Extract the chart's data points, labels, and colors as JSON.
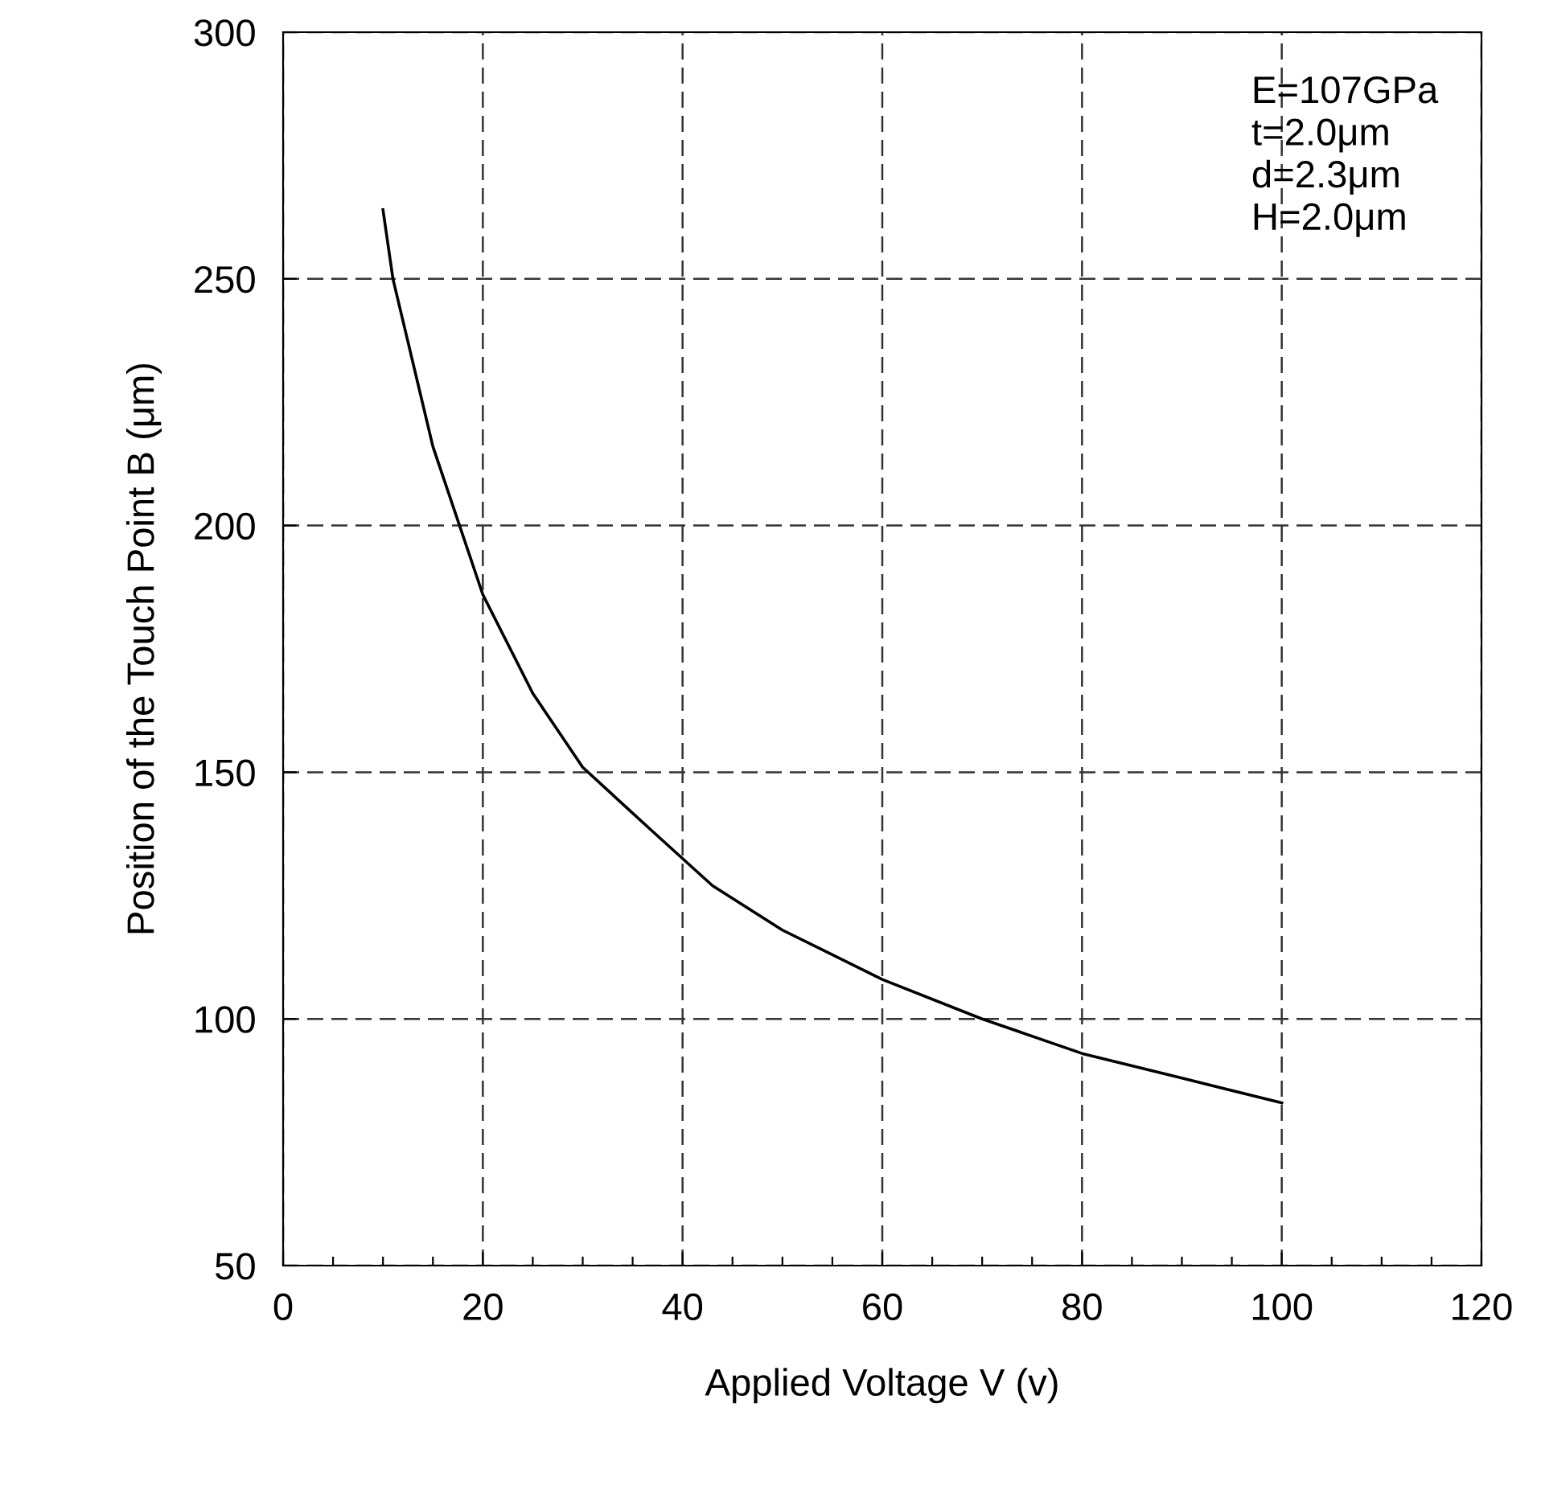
{
  "chart_data": {
    "type": "line",
    "xlabel": "Applied Voltage V (v)",
    "ylabel": "Position of the Touch Point B (μm)",
    "x": [
      10,
      11,
      15,
      20,
      25,
      30,
      37,
      43,
      50,
      60,
      70,
      80,
      90,
      100
    ],
    "series": [
      {
        "color": "#000000",
        "values": [
          264,
          250,
          216,
          186,
          166,
          151,
          138,
          127,
          118,
          108,
          100,
          93,
          88,
          83
        ]
      }
    ],
    "xlim": [
      0,
      120
    ],
    "ylim": [
      50,
      300
    ],
    "xticks": [
      0,
      {
        "value": 5,
        "label": null
      },
      {
        "value": 10,
        "label": null
      },
      {
        "value": 15,
        "label": null
      },
      20,
      {
        "value": 25,
        "label": null
      },
      {
        "value": 30,
        "label": null
      },
      {
        "value": 35,
        "label": null
      },
      40,
      {
        "value": 45,
        "label": null
      },
      {
        "value": 50,
        "label": null
      },
      {
        "value": 55,
        "label": null
      },
      60,
      {
        "value": 65,
        "label": null
      },
      {
        "value": 70,
        "label": null
      },
      {
        "value": 75,
        "label": null
      },
      80,
      {
        "value": 85,
        "label": null
      },
      {
        "value": 90,
        "label": null
      },
      {
        "value": 95,
        "label": null
      },
      100,
      {
        "value": 105,
        "label": null
      },
      {
        "value": 110,
        "label": null
      },
      {
        "value": 115,
        "label": null
      },
      120
    ],
    "yticks": [
      50,
      100,
      150,
      200,
      250,
      300
    ],
    "grid": true,
    "marker": "none",
    "line_style": "solid",
    "legend": false,
    "annotations": [
      "E=107GPa\nt=2.0μm\nd=2.3μm\nH=2.0μm"
    ]
  }
}
